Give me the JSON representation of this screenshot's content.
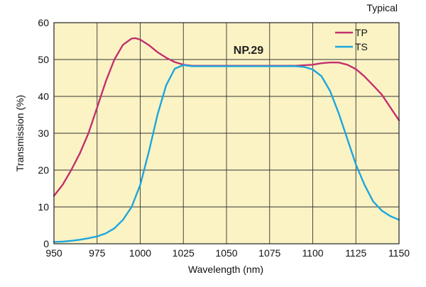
{
  "chart_data": {
    "type": "line",
    "title": "",
    "note": "Typical",
    "annotation": "NP.29",
    "xlabel": "Wavelength (nm)",
    "ylabel": "Transmission (%)",
    "xlim": [
      950,
      1150
    ],
    "ylim": [
      0,
      60
    ],
    "xticks": [
      950,
      975,
      1000,
      1025,
      1050,
      1075,
      1100,
      1125,
      1150
    ],
    "yticks": [
      0,
      10,
      20,
      30,
      40,
      50,
      60
    ],
    "grid": true,
    "legend_position": "top-right",
    "colors": {
      "background": "#fbf3c4",
      "grid": "#333333",
      "TP": "#c2306e",
      "TS": "#1ba6de"
    },
    "series": [
      {
        "name": "TP",
        "x": [
          950,
          955,
          960,
          965,
          970,
          975,
          980,
          985,
          990,
          995,
          997,
          1000,
          1005,
          1010,
          1015,
          1020,
          1025,
          1030,
          1040,
          1050,
          1060,
          1070,
          1080,
          1090,
          1100,
          1105,
          1110,
          1115,
          1120,
          1125,
          1130,
          1135,
          1140,
          1145,
          1150
        ],
        "values": [
          13,
          16,
          20,
          24.5,
          30,
          37,
          44,
          50,
          54,
          55.7,
          55.8,
          55.4,
          53.9,
          52,
          50.5,
          49.3,
          48.6,
          48.3,
          48.3,
          48.3,
          48.3,
          48.3,
          48.3,
          48.3,
          48.6,
          49,
          49.2,
          49.2,
          48.6,
          47.4,
          45.4,
          43,
          40.5,
          37,
          33.5
        ]
      },
      {
        "name": "TS",
        "x": [
          950,
          955,
          960,
          965,
          970,
          975,
          980,
          985,
          990,
          995,
          1000,
          1005,
          1010,
          1015,
          1020,
          1025,
          1030,
          1040,
          1050,
          1060,
          1070,
          1080,
          1090,
          1095,
          1100,
          1105,
          1110,
          1115,
          1120,
          1125,
          1130,
          1135,
          1140,
          1145,
          1150
        ],
        "values": [
          0.5,
          0.6,
          0.8,
          1.1,
          1.5,
          2,
          2.8,
          4.2,
          6.5,
          10,
          16,
          25,
          35,
          43,
          47.5,
          48.5,
          48.2,
          48.2,
          48.2,
          48.2,
          48.2,
          48.2,
          48.2,
          48,
          47.3,
          45.5,
          41.5,
          35.5,
          28.5,
          21.5,
          16,
          11.5,
          9,
          7.5,
          6.5
        ]
      }
    ]
  }
}
